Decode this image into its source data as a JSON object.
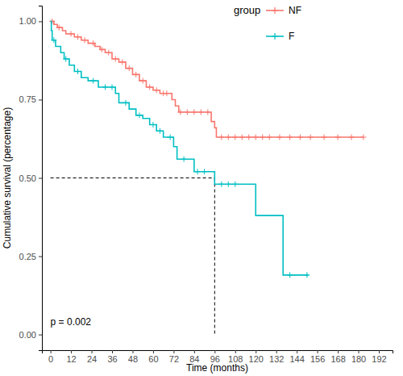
{
  "chart_data": {
    "type": "line",
    "x_label": "Time (months)",
    "y_label": "Cumulative survival (percentage)",
    "legend_title": "group",
    "legend": "top-right",
    "annotation": "p = 0.002",
    "line_style": "step",
    "marker": "plus",
    "grid": false,
    "xlim": [
      -5,
      200
    ],
    "ylim": [
      -0.05,
      1.05
    ],
    "xticks": [
      0,
      12,
      24,
      36,
      48,
      60,
      72,
      84,
      96,
      108,
      120,
      132,
      144,
      156,
      168,
      180,
      192
    ],
    "yticks": [
      {
        "value": 0,
        "label": "0.00"
      },
      {
        "value": 0.25,
        "label": "0.25"
      },
      {
        "value": 0.5,
        "label": "0.50"
      },
      {
        "value": 0.75,
        "label": "0.75"
      },
      {
        "value": 1,
        "label": "1.00"
      }
    ],
    "median": {
      "x": 96,
      "y": 0.5
    },
    "series": [
      {
        "name": "NF",
        "color": "#F8766D",
        "x": [
          0,
          2,
          4,
          7,
          9,
          14,
          18,
          22,
          26,
          29,
          32,
          36,
          40,
          44,
          48,
          52,
          56,
          60,
          64,
          71,
          73,
          75,
          94,
          96,
          97,
          183
        ],
        "values": [
          1,
          0.99,
          0.98,
          0.97,
          0.96,
          0.95,
          0.94,
          0.93,
          0.92,
          0.91,
          0.9,
          0.88,
          0.87,
          0.85,
          0.83,
          0.81,
          0.79,
          0.78,
          0.77,
          0.75,
          0.73,
          0.71,
          0.68,
          0.66,
          0.63,
          0.63
        ],
        "censor_x": [
          1,
          5,
          12,
          16,
          20,
          25,
          30,
          34,
          38,
          42,
          46,
          50,
          54,
          58,
          62,
          66,
          68,
          76,
          80,
          84,
          88,
          92,
          100,
          104,
          108,
          112,
          116,
          120,
          124,
          128,
          134,
          140,
          146,
          152,
          160,
          168,
          176,
          183
        ],
        "censor_values": [
          1,
          0.98,
          0.96,
          0.95,
          0.94,
          0.93,
          0.91,
          0.9,
          0.88,
          0.87,
          0.85,
          0.83,
          0.81,
          0.79,
          0.78,
          0.77,
          0.77,
          0.71,
          0.71,
          0.71,
          0.71,
          0.71,
          0.63,
          0.63,
          0.63,
          0.63,
          0.63,
          0.63,
          0.63,
          0.63,
          0.63,
          0.63,
          0.63,
          0.63,
          0.63,
          0.63,
          0.63,
          0.63
        ]
      },
      {
        "name": "F",
        "color": "#00BFC4",
        "x": [
          0,
          0.5,
          1,
          3,
          6,
          8,
          11,
          14,
          18,
          22,
          28,
          38,
          40,
          46,
          50,
          54,
          58,
          62,
          66,
          72,
          74,
          84,
          96,
          120,
          136,
          151
        ],
        "values": [
          1,
          0.97,
          0.94,
          0.92,
          0.9,
          0.88,
          0.86,
          0.84,
          0.82,
          0.81,
          0.79,
          0.77,
          0.74,
          0.72,
          0.7,
          0.69,
          0.67,
          0.65,
          0.63,
          0.6,
          0.56,
          0.52,
          0.48,
          0.38,
          0.19,
          0.19
        ],
        "censor_x": [
          2,
          9,
          16,
          25,
          32,
          36,
          44,
          52,
          60,
          64,
          70,
          78,
          86,
          90,
          100,
          104,
          108,
          140,
          150
        ],
        "censor_values": [
          0.94,
          0.88,
          0.84,
          0.81,
          0.79,
          0.79,
          0.74,
          0.7,
          0.67,
          0.65,
          0.63,
          0.56,
          0.52,
          0.52,
          0.48,
          0.48,
          0.48,
          0.19,
          0.19
        ]
      }
    ]
  }
}
